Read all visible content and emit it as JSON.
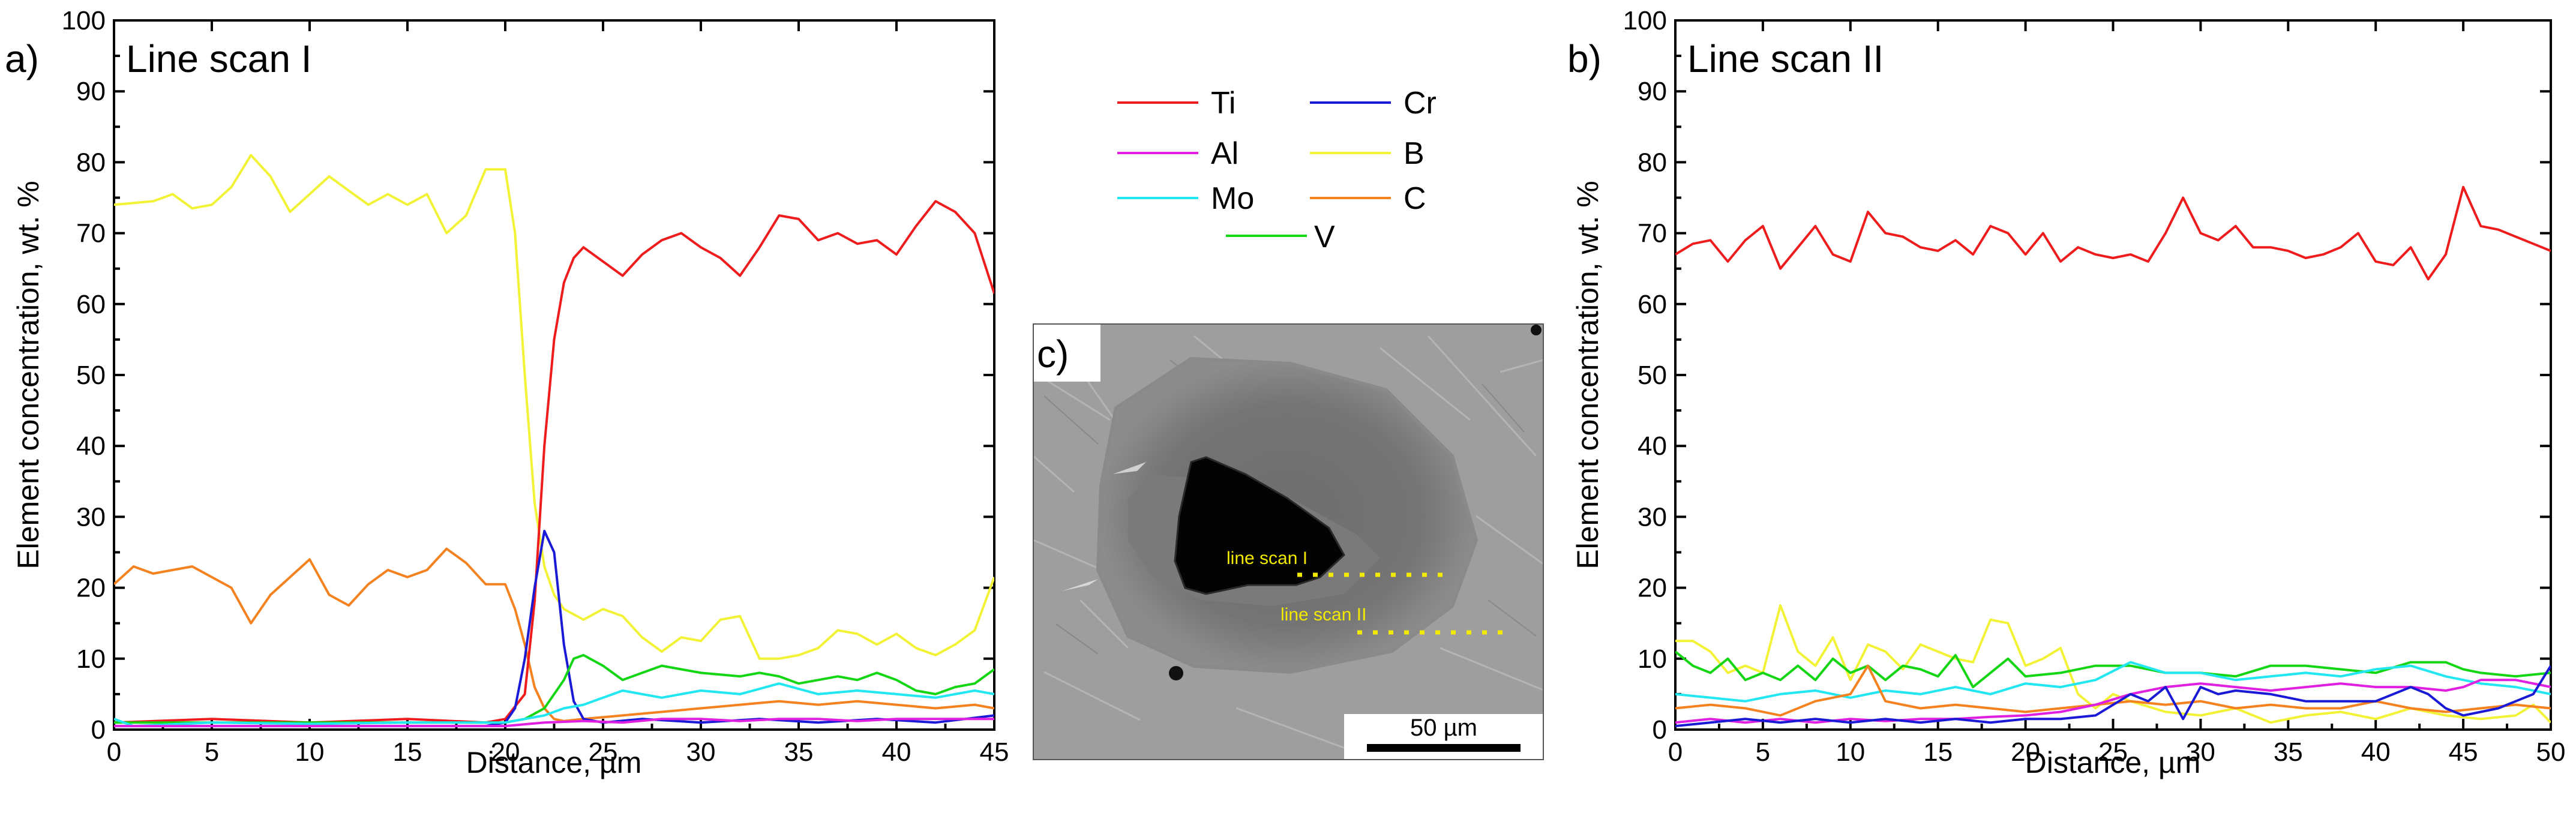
{
  "legend": {
    "entries": [
      {
        "name": "Ti",
        "color": "#ee1c1c"
      },
      {
        "name": "Cr",
        "color": "#1a1ad6"
      },
      {
        "name": "Al",
        "color": "#e020e0"
      },
      {
        "name": "B",
        "color": "#f2f236"
      },
      {
        "name": "Mo",
        "color": "#22e6f0"
      },
      {
        "name": "C",
        "color": "#f58220"
      },
      {
        "name": "V",
        "color": "#14d614"
      }
    ]
  },
  "image_panel": {
    "letter": "c)",
    "line_scan_1_label": "line scan I",
    "line_scan_2_label": "line scan II",
    "scale_bar_label": "50 µm"
  },
  "chart_data": [
    {
      "type": "line",
      "panel_letter": "a)",
      "title": "Line scan I",
      "xlabel": "Distance, µm",
      "ylabel": "Element concentration, wt. %",
      "xlim": [
        0,
        45
      ],
      "ylim": [
        0,
        100
      ],
      "xticks": [
        0,
        5,
        10,
        15,
        20,
        25,
        30,
        35,
        40,
        45
      ],
      "yticks": [
        0,
        10,
        20,
        30,
        40,
        50,
        60,
        70,
        80,
        90,
        100
      ],
      "series": [
        {
          "name": "B",
          "x": [
            0,
            2,
            3,
            4,
            5,
            6,
            7,
            8,
            9,
            10,
            11,
            12,
            13,
            14,
            15,
            16,
            17,
            18,
            19,
            20,
            20.5,
            21,
            21.5,
            22,
            22.5,
            23,
            24,
            25,
            26,
            27,
            28,
            29,
            30,
            31,
            32,
            33,
            34,
            35,
            36,
            37,
            38,
            39,
            40,
            41,
            42,
            43,
            44,
            45
          ],
          "y": [
            74,
            74.5,
            75.5,
            73.5,
            74,
            76.5,
            81,
            78,
            73,
            75.5,
            78,
            76,
            74,
            75.5,
            74,
            75.5,
            70,
            72.5,
            79,
            79,
            70,
            50,
            32,
            23,
            19,
            17,
            15.5,
            17,
            16,
            13,
            11,
            13,
            12.5,
            15.5,
            16,
            10,
            10,
            10.5,
            11.5,
            14,
            13.5,
            12,
            13.5,
            11.5,
            10.5,
            12,
            14,
            21.5
          ]
        },
        {
          "name": "C",
          "x": [
            0,
            1,
            2,
            3,
            4,
            5,
            6,
            7,
            8,
            9,
            10,
            11,
            12,
            13,
            14,
            15,
            16,
            17,
            18,
            19,
            20,
            20.5,
            21,
            21.5,
            22,
            22.5,
            23,
            24,
            26,
            28,
            30,
            32,
            34,
            36,
            38,
            40,
            42,
            44,
            45
          ],
          "y": [
            20.5,
            23,
            22,
            22.5,
            23,
            21.5,
            20,
            15,
            19,
            21.5,
            24,
            19,
            17.5,
            20.5,
            22.5,
            21.5,
            22.5,
            25.5,
            23.5,
            20.5,
            20.5,
            17,
            12,
            6,
            3,
            1.5,
            1.2,
            1.5,
            2,
            2.5,
            3,
            3.5,
            4,
            3.5,
            4,
            3.5,
            3,
            3.5,
            3
          ]
        },
        {
          "name": "Ti",
          "x": [
            0,
            5,
            10,
            15,
            19,
            20,
            21,
            21.5,
            22,
            22.5,
            23,
            23.5,
            24,
            25,
            26,
            27,
            28,
            29,
            30,
            31,
            32,
            33,
            34,
            35,
            36,
            37,
            38,
            39,
            40,
            41,
            42,
            43,
            44,
            45
          ],
          "y": [
            1,
            1.5,
            1,
            1.5,
            1,
            1.5,
            5,
            18,
            40,
            55,
            63,
            66.5,
            68,
            66,
            64,
            67,
            69,
            70,
            68,
            66.5,
            64,
            68,
            72.5,
            72,
            69,
            70,
            68.5,
            69,
            67,
            71,
            74.5,
            73,
            70,
            61.5
          ]
        },
        {
          "name": "Cr",
          "x": [
            0,
            5,
            10,
            15,
            19,
            20,
            20.5,
            21,
            21.5,
            22,
            22.5,
            23,
            23.5,
            24,
            25,
            27,
            30,
            33,
            36,
            39,
            42,
            45
          ],
          "y": [
            0.5,
            0.5,
            0.5,
            0.5,
            0.5,
            1,
            3,
            10,
            20,
            28,
            25,
            12,
            4,
            1.5,
            1,
            1.5,
            1,
            1.5,
            1,
            1.5,
            1,
            2
          ]
        },
        {
          "name": "V",
          "x": [
            0,
            5,
            10,
            15,
            20,
            21,
            22,
            23,
            23.5,
            24,
            25,
            26,
            27,
            28,
            30,
            32,
            33,
            34,
            35,
            36,
            37,
            38,
            39,
            40,
            41,
            42,
            43,
            44,
            45
          ],
          "y": [
            1,
            1,
            1,
            1,
            1,
            1.5,
            3,
            7,
            10,
            10.5,
            9,
            7,
            8,
            9,
            8,
            7.5,
            8,
            7.5,
            6.5,
            7,
            7.5,
            7,
            8,
            7,
            5.5,
            5,
            6,
            6.5,
            8.5
          ]
        },
        {
          "name": "Mo",
          "x": [
            0,
            1,
            5,
            10,
            15,
            20,
            22,
            23,
            24,
            25,
            26,
            28,
            30,
            32,
            34,
            36,
            38,
            40,
            42,
            44,
            45
          ],
          "y": [
            1.5,
            0.5,
            1,
            0.8,
            1,
            1,
            2,
            3,
            3.5,
            4.5,
            5.5,
            4.5,
            5.5,
            5,
            6.5,
            5,
            5.5,
            5,
            4.5,
            5.5,
            5
          ]
        },
        {
          "name": "Al",
          "x": [
            0,
            5,
            10,
            15,
            20,
            22,
            24,
            26,
            28,
            30,
            32,
            34,
            36,
            38,
            40,
            42,
            44,
            45
          ],
          "y": [
            0.5,
            0.5,
            0.5,
            0.5,
            0.5,
            1,
            1.2,
            1,
            1.5,
            1.5,
            1.2,
            1.5,
            1.5,
            1.2,
            1.5,
            1.5,
            1.5,
            1.5
          ]
        }
      ]
    },
    {
      "type": "line",
      "panel_letter": "b)",
      "title": "Line scan II",
      "xlabel": "Distance, µm",
      "ylabel": "Element concentration, wt. %",
      "xlim": [
        0,
        50
      ],
      "ylim": [
        0,
        100
      ],
      "xticks": [
        0,
        5,
        10,
        15,
        20,
        25,
        30,
        35,
        40,
        45,
        50
      ],
      "yticks": [
        0,
        10,
        20,
        30,
        40,
        50,
        60,
        70,
        80,
        90,
        100
      ],
      "series": [
        {
          "name": "Ti",
          "x": [
            0,
            1,
            2,
            3,
            4,
            5,
            6,
            7,
            8,
            9,
            10,
            11,
            12,
            13,
            14,
            15,
            16,
            17,
            18,
            19,
            20,
            21,
            22,
            23,
            24,
            25,
            26,
            27,
            28,
            29,
            30,
            31,
            32,
            33,
            34,
            35,
            36,
            37,
            38,
            39,
            40,
            41,
            42,
            43,
            44,
            45,
            46,
            47,
            48,
            49,
            50
          ],
          "y": [
            67,
            68.5,
            69,
            66,
            69,
            71,
            65,
            68,
            71,
            67,
            66,
            73,
            70,
            69.5,
            68,
            67.5,
            69,
            67,
            71,
            70,
            67,
            70,
            66,
            68,
            67,
            66.5,
            67,
            66,
            70,
            75,
            70,
            69,
            71,
            68,
            68,
            67.5,
            66.5,
            67,
            68,
            70,
            66,
            65.5,
            68,
            63.5,
            67,
            76.5,
            71,
            70.5,
            69.5,
            68.5,
            67.5
          ]
        },
        {
          "name": "B",
          "x": [
            0,
            1,
            2,
            3,
            4,
            5,
            6,
            7,
            8,
            9,
            10,
            11,
            12,
            13,
            14,
            15,
            16,
            17,
            18,
            19,
            20,
            21,
            22,
            23,
            24,
            25,
            26,
            28,
            30,
            32,
            34,
            36,
            38,
            40,
            42,
            44,
            46,
            48,
            49,
            50
          ],
          "y": [
            12.5,
            12.5,
            11,
            8,
            9,
            8,
            17.5,
            11,
            9,
            13,
            7,
            12,
            11,
            8.5,
            12,
            11,
            10,
            9.5,
            15.5,
            15,
            9,
            10,
            11.5,
            5,
            3,
            5,
            4,
            2.5,
            2,
            3,
            1,
            2,
            2.5,
            1.5,
            3,
            2,
            1.5,
            2,
            3.5,
            1
          ]
        },
        {
          "name": "V",
          "x": [
            0,
            1,
            2,
            3,
            4,
            5,
            6,
            7,
            8,
            9,
            10,
            11,
            12,
            13,
            14,
            15,
            16,
            17,
            18,
            19,
            20,
            22,
            24,
            26,
            28,
            30,
            32,
            34,
            36,
            38,
            40,
            42,
            44,
            45,
            46,
            48,
            50
          ],
          "y": [
            11,
            9,
            8,
            10,
            7,
            8,
            7,
            9,
            7,
            10,
            8,
            9,
            7,
            9,
            8.5,
            7.5,
            10.5,
            6,
            8,
            10,
            7.5,
            8,
            9,
            9,
            8,
            8,
            7.5,
            9,
            9,
            8.5,
            8,
            9.5,
            9.5,
            8.5,
            8,
            7.5,
            8
          ]
        },
        {
          "name": "Mo",
          "x": [
            0,
            2,
            4,
            6,
            8,
            10,
            12,
            14,
            16,
            18,
            20,
            22,
            24,
            26,
            28,
            30,
            32,
            34,
            36,
            38,
            40,
            42,
            44,
            46,
            48,
            50
          ],
          "y": [
            5,
            4.5,
            4,
            5,
            5.5,
            4.5,
            5.5,
            5,
            6,
            5,
            6.5,
            6,
            7,
            9.5,
            8,
            8,
            7,
            7.5,
            8,
            7.5,
            8.5,
            9,
            7.5,
            6.5,
            6,
            5
          ]
        },
        {
          "name": "C",
          "x": [
            0,
            2,
            4,
            6,
            8,
            10,
            11,
            12,
            14,
            16,
            18,
            20,
            22,
            24,
            26,
            28,
            30,
            32,
            34,
            36,
            38,
            40,
            42,
            44,
            46,
            48,
            50
          ],
          "y": [
            3,
            3.5,
            3,
            2,
            4,
            5,
            9,
            4,
            3,
            3.5,
            3,
            2.5,
            3,
            3.5,
            4,
            3.5,
            4,
            3,
            3.5,
            3,
            3,
            4,
            3,
            2.5,
            3,
            3.5,
            3
          ]
        },
        {
          "name": "Al",
          "x": [
            0,
            2,
            4,
            6,
            8,
            10,
            12,
            14,
            16,
            18,
            20,
            22,
            24,
            26,
            28,
            30,
            32,
            34,
            36,
            38,
            40,
            42,
            44,
            45,
            46,
            48,
            50
          ],
          "y": [
            1,
            1.5,
            1,
            1.5,
            1,
            1.5,
            1.2,
            1.5,
            1.5,
            1.8,
            2,
            2.5,
            3.5,
            5,
            6,
            6.5,
            6,
            5.5,
            6,
            6.5,
            6,
            6,
            5.5,
            6,
            7,
            7,
            6
          ]
        },
        {
          "name": "Cr",
          "x": [
            0,
            2,
            4,
            6,
            8,
            10,
            12,
            14,
            16,
            18,
            20,
            22,
            24,
            26,
            27,
            28,
            29,
            30,
            31,
            32,
            34,
            36,
            38,
            40,
            42,
            43,
            44,
            45,
            46,
            47,
            48,
            49,
            50
          ],
          "y": [
            0.5,
            1,
            1.5,
            1,
            1.5,
            1,
            1.5,
            1,
            1.5,
            1,
            1.5,
            1.5,
            2,
            5,
            4,
            6,
            1.5,
            6,
            5,
            5.5,
            5,
            4,
            4,
            4,
            6,
            5,
            3,
            2,
            2.5,
            3,
            4,
            5,
            9
          ]
        }
      ]
    }
  ]
}
